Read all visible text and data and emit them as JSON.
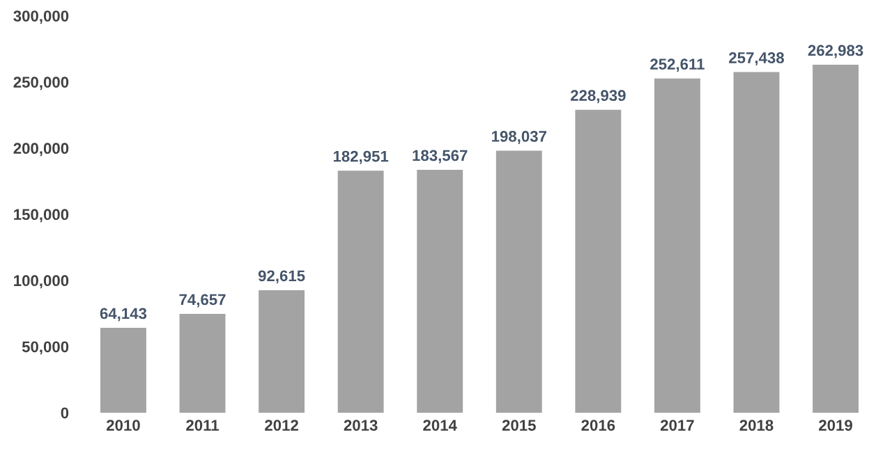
{
  "chart_data": {
    "type": "bar",
    "categories": [
      "2010",
      "2011",
      "2012",
      "2013",
      "2014",
      "2015",
      "2016",
      "2017",
      "2018",
      "2019"
    ],
    "values": [
      64143,
      74657,
      92615,
      182951,
      183567,
      198037,
      228939,
      252611,
      257438,
      262983
    ],
    "value_labels": [
      "64,143",
      "74,657",
      "92,615",
      "182,951",
      "183,567",
      "198,037",
      "228,939",
      "252,611",
      "257,438",
      "262,983"
    ],
    "color": "#a3a3a3",
    "ylim": [
      0,
      300000
    ],
    "yticks": [
      {
        "value": 0,
        "label": "0"
      },
      {
        "value": 50000,
        "label": "50,000"
      },
      {
        "value": 100000,
        "label": "100,000"
      },
      {
        "value": 150000,
        "label": "150,000"
      },
      {
        "value": 200000,
        "label": "200,000"
      },
      {
        "value": 250000,
        "label": "250,000"
      },
      {
        "value": 300000,
        "label": "300,000"
      }
    ],
    "grid": false,
    "legend": false
  }
}
